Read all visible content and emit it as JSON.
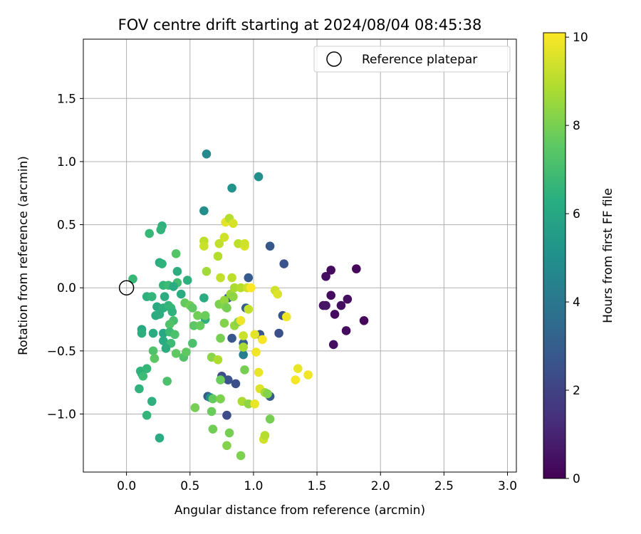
{
  "chart_data": {
    "type": "scatter",
    "title": "FOV centre drift starting at 2024/08/04 08:45:38",
    "xlabel": "Angular distance from reference (arcmin)",
    "ylabel": "Rotation from reference (arcmin)",
    "xlim": [
      -0.34,
      3.07
    ],
    "ylim": [
      -1.46,
      1.97
    ],
    "xticks": [
      0.0,
      0.5,
      1.0,
      1.5,
      2.0,
      2.5,
      3.0
    ],
    "xtick_labels": [
      "0.0",
      "0.5",
      "1.0",
      "1.5",
      "2.0",
      "2.5",
      "3.0"
    ],
    "yticks": [
      -1.0,
      -0.5,
      0.0,
      0.5,
      1.0,
      1.5
    ],
    "ytick_labels": [
      "−1.0",
      "−0.5",
      "0.0",
      "0.5",
      "1.0",
      "1.5"
    ],
    "grid": true,
    "legend": {
      "position": "top-right",
      "entries": [
        {
          "label": "Reference platepar",
          "marker": "open-circle"
        }
      ]
    },
    "reference_point": {
      "x": 0.0,
      "y": 0.0
    },
    "colorbar": {
      "label": "Hours from first FF file",
      "colormap": "viridis",
      "range": [
        0,
        10.1
      ],
      "ticks": [
        0,
        2,
        4,
        6,
        8,
        10
      ],
      "tick_labels": [
        "0",
        "2",
        "4",
        "6",
        "8",
        "10"
      ]
    },
    "points": [
      {
        "x": 1.57,
        "y": 0.09,
        "t": 0.4
      },
      {
        "x": 1.61,
        "y": 0.14,
        "t": 0.3
      },
      {
        "x": 1.81,
        "y": 0.15,
        "t": 0.2
      },
      {
        "x": 1.61,
        "y": -0.06,
        "t": 0.3
      },
      {
        "x": 1.74,
        "y": -0.09,
        "t": 0.4
      },
      {
        "x": 1.55,
        "y": -0.14,
        "t": 0.5
      },
      {
        "x": 1.57,
        "y": -0.14,
        "t": 0.6
      },
      {
        "x": 1.69,
        "y": -0.14,
        "t": 0.4
      },
      {
        "x": 1.64,
        "y": -0.21,
        "t": 0.3
      },
      {
        "x": 1.87,
        "y": -0.26,
        "t": 0.2
      },
      {
        "x": 1.73,
        "y": -0.34,
        "t": 0.3
      },
      {
        "x": 1.63,
        "y": -0.45,
        "t": 0.4
      },
      {
        "x": 1.24,
        "y": 0.19,
        "t": 2.6
      },
      {
        "x": 1.13,
        "y": 0.33,
        "t": 2.8
      },
      {
        "x": 0.96,
        "y": 0.08,
        "t": 2.9
      },
      {
        "x": 1.23,
        "y": -0.22,
        "t": 2.6
      },
      {
        "x": 0.94,
        "y": -0.16,
        "t": 3.0
      },
      {
        "x": 1.05,
        "y": -0.37,
        "t": 2.7
      },
      {
        "x": 1.2,
        "y": -0.36,
        "t": 2.5
      },
      {
        "x": 0.83,
        "y": -0.4,
        "t": 2.8
      },
      {
        "x": 0.92,
        "y": -0.44,
        "t": 3.1
      },
      {
        "x": 0.75,
        "y": -0.7,
        "t": 2.4
      },
      {
        "x": 0.8,
        "y": -0.73,
        "t": 2.6
      },
      {
        "x": 0.86,
        "y": -0.76,
        "t": 2.5
      },
      {
        "x": 0.64,
        "y": -0.86,
        "t": 3.0
      },
      {
        "x": 0.79,
        "y": -1.01,
        "t": 2.4
      },
      {
        "x": 1.13,
        "y": -0.86,
        "t": 2.9
      },
      {
        "x": 0.8,
        "y": -0.08,
        "t": 3.2
      },
      {
        "x": 0.63,
        "y": 1.06,
        "t": 4.8
      },
      {
        "x": 1.04,
        "y": 0.88,
        "t": 5.0
      },
      {
        "x": 0.83,
        "y": 0.79,
        "t": 5.2
      },
      {
        "x": 0.61,
        "y": 0.61,
        "t": 5.0
      },
      {
        "x": 0.92,
        "y": -0.53,
        "t": 4.3
      },
      {
        "x": 0.66,
        "y": -0.87,
        "t": 5.1
      },
      {
        "x": 0.39,
        "y": 0.27,
        "t": 7.4
      },
      {
        "x": 0.28,
        "y": 0.49,
        "t": 6.4
      },
      {
        "x": 0.27,
        "y": 0.46,
        "t": 6.6
      },
      {
        "x": 0.18,
        "y": 0.43,
        "t": 6.8
      },
      {
        "x": 0.26,
        "y": 0.2,
        "t": 6.2
      },
      {
        "x": 0.28,
        "y": 0.19,
        "t": 6.5
      },
      {
        "x": 0.4,
        "y": 0.13,
        "t": 6.3
      },
      {
        "x": 0.05,
        "y": 0.07,
        "t": 6.8
      },
      {
        "x": 0.29,
        "y": 0.02,
        "t": 6.7
      },
      {
        "x": 0.33,
        "y": 0.02,
        "t": 6.9
      },
      {
        "x": 0.4,
        "y": 0.04,
        "t": 7.0
      },
      {
        "x": 0.48,
        "y": 0.06,
        "t": 6.4
      },
      {
        "x": 0.37,
        "y": 0.01,
        "t": 6.2
      },
      {
        "x": 0.43,
        "y": -0.05,
        "t": 6.2
      },
      {
        "x": 0.16,
        "y": -0.07,
        "t": 6.4
      },
      {
        "x": 0.2,
        "y": -0.07,
        "t": 6.6
      },
      {
        "x": 0.3,
        "y": -0.07,
        "t": 6.3
      },
      {
        "x": 0.24,
        "y": -0.15,
        "t": 6.1
      },
      {
        "x": 0.29,
        "y": -0.16,
        "t": 6.4
      },
      {
        "x": 0.33,
        "y": -0.14,
        "t": 6.6
      },
      {
        "x": 0.35,
        "y": -0.16,
        "t": 6.7
      },
      {
        "x": 0.36,
        "y": -0.19,
        "t": 6.5
      },
      {
        "x": 0.23,
        "y": -0.22,
        "t": 6.2
      },
      {
        "x": 0.26,
        "y": -0.21,
        "t": 6.3
      },
      {
        "x": 0.37,
        "y": -0.26,
        "t": 7.1
      },
      {
        "x": 0.34,
        "y": -0.29,
        "t": 7.3
      },
      {
        "x": 0.12,
        "y": -0.33,
        "t": 6.1
      },
      {
        "x": 0.12,
        "y": -0.36,
        "t": 6.4
      },
      {
        "x": 0.21,
        "y": -0.36,
        "t": 6.2
      },
      {
        "x": 0.29,
        "y": -0.36,
        "t": 6.0
      },
      {
        "x": 0.34,
        "y": -0.35,
        "t": 6.9
      },
      {
        "x": 0.38,
        "y": -0.37,
        "t": 7.2
      },
      {
        "x": 0.29,
        "y": -0.42,
        "t": 6.2
      },
      {
        "x": 0.35,
        "y": -0.44,
        "t": 6.9
      },
      {
        "x": 0.31,
        "y": -0.48,
        "t": 6.3
      },
      {
        "x": 0.21,
        "y": -0.5,
        "t": 7.3
      },
      {
        "x": 0.22,
        "y": -0.56,
        "t": 7.5
      },
      {
        "x": 0.39,
        "y": -0.52,
        "t": 7.6
      },
      {
        "x": 0.45,
        "y": -0.55,
        "t": 7.3
      },
      {
        "x": 0.47,
        "y": -0.51,
        "t": 7.6
      },
      {
        "x": 0.52,
        "y": -0.44,
        "t": 7.2
      },
      {
        "x": 0.11,
        "y": -0.66,
        "t": 6.6
      },
      {
        "x": 0.12,
        "y": -0.68,
        "t": 6.4
      },
      {
        "x": 0.16,
        "y": -0.64,
        "t": 6.7
      },
      {
        "x": 0.13,
        "y": -0.7,
        "t": 6.9
      },
      {
        "x": 0.1,
        "y": -0.8,
        "t": 6.5
      },
      {
        "x": 0.32,
        "y": -0.74,
        "t": 7.2
      },
      {
        "x": 0.2,
        "y": -0.9,
        "t": 6.4
      },
      {
        "x": 0.16,
        "y": -1.01,
        "t": 6.6
      },
      {
        "x": 0.26,
        "y": -1.19,
        "t": 6.2
      },
      {
        "x": 0.61,
        "y": -0.08,
        "t": 6.2
      },
      {
        "x": 0.62,
        "y": -0.25,
        "t": 6.4
      },
      {
        "x": 0.46,
        "y": -0.12,
        "t": 7.7
      },
      {
        "x": 0.5,
        "y": -0.14,
        "t": 7.9
      },
      {
        "x": 0.52,
        "y": -0.16,
        "t": 7.6
      },
      {
        "x": 0.56,
        "y": -0.22,
        "t": 7.9
      },
      {
        "x": 0.62,
        "y": -0.22,
        "t": 7.8
      },
      {
        "x": 0.53,
        "y": -0.3,
        "t": 7.5
      },
      {
        "x": 0.58,
        "y": -0.3,
        "t": 7.7
      },
      {
        "x": 0.54,
        "y": -0.95,
        "t": 8.0
      },
      {
        "x": 0.67,
        "y": -0.98,
        "t": 7.8
      },
      {
        "x": 0.68,
        "y": -0.88,
        "t": 7.7
      },
      {
        "x": 0.68,
        "y": -1.12,
        "t": 7.9
      },
      {
        "x": 0.74,
        "y": -0.88,
        "t": 8.1
      },
      {
        "x": 0.74,
        "y": -0.73,
        "t": 7.8
      },
      {
        "x": 0.81,
        "y": -1.15,
        "t": 8.0
      },
      {
        "x": 0.79,
        "y": -1.25,
        "t": 8.2
      },
      {
        "x": 0.9,
        "y": -1.33,
        "t": 8.1
      },
      {
        "x": 0.67,
        "y": -0.55,
        "t": 8.3
      },
      {
        "x": 0.72,
        "y": -0.57,
        "t": 8.9
      },
      {
        "x": 0.74,
        "y": -0.4,
        "t": 8.0
      },
      {
        "x": 0.73,
        "y": -0.13,
        "t": 8.1
      },
      {
        "x": 0.77,
        "y": -0.1,
        "t": 8.5
      },
      {
        "x": 0.78,
        "y": -0.15,
        "t": 8.3
      },
      {
        "x": 0.79,
        "y": -0.16,
        "t": 8.0
      },
      {
        "x": 0.82,
        "y": -0.05,
        "t": 8.6
      },
      {
        "x": 0.84,
        "y": -0.07,
        "t": 8.4
      },
      {
        "x": 0.85,
        "y": 0.0,
        "t": 8.8
      },
      {
        "x": 0.9,
        "y": 0.0,
        "t": 9.0
      },
      {
        "x": 0.77,
        "y": -0.28,
        "t": 8.2
      },
      {
        "x": 0.85,
        "y": -0.3,
        "t": 8.5
      },
      {
        "x": 0.88,
        "y": -0.27,
        "t": 8.3
      },
      {
        "x": 0.92,
        "y": -0.38,
        "t": 9.3
      },
      {
        "x": 0.92,
        "y": -0.47,
        "t": 8.8
      },
      {
        "x": 0.96,
        "y": -0.17,
        "t": 9.2
      },
      {
        "x": 0.93,
        "y": -0.65,
        "t": 8.0
      },
      {
        "x": 0.91,
        "y": -0.9,
        "t": 8.8
      },
      {
        "x": 0.96,
        "y": -0.92,
        "t": 8.4
      },
      {
        "x": 1.01,
        "y": -0.92,
        "t": 9.8
      },
      {
        "x": 1.05,
        "y": -0.8,
        "t": 9.6
      },
      {
        "x": 1.09,
        "y": -0.83,
        "t": 8.7
      },
      {
        "x": 1.11,
        "y": -0.84,
        "t": 8.2
      },
      {
        "x": 1.13,
        "y": -1.04,
        "t": 8.0
      },
      {
        "x": 1.08,
        "y": -1.2,
        "t": 9.4
      },
      {
        "x": 1.09,
        "y": -1.17,
        "t": 9.0
      },
      {
        "x": 0.61,
        "y": 0.37,
        "t": 9.1
      },
      {
        "x": 0.61,
        "y": 0.33,
        "t": 9.3
      },
      {
        "x": 0.63,
        "y": 0.13,
        "t": 8.7
      },
      {
        "x": 0.72,
        "y": 0.25,
        "t": 9.0
      },
      {
        "x": 0.73,
        "y": 0.35,
        "t": 9.2
      },
      {
        "x": 0.77,
        "y": 0.4,
        "t": 9.4
      },
      {
        "x": 0.78,
        "y": 0.52,
        "t": 9.7
      },
      {
        "x": 0.81,
        "y": 0.55,
        "t": 9.0
      },
      {
        "x": 0.84,
        "y": 0.51,
        "t": 9.5
      },
      {
        "x": 0.88,
        "y": 0.35,
        "t": 9.1
      },
      {
        "x": 0.93,
        "y": 0.33,
        "t": 9.6
      },
      {
        "x": 0.93,
        "y": 0.35,
        "t": 9.4
      },
      {
        "x": 0.74,
        "y": 0.08,
        "t": 9.2
      },
      {
        "x": 0.83,
        "y": 0.08,
        "t": 9.1
      },
      {
        "x": 0.95,
        "y": 0.0,
        "t": 9.4
      },
      {
        "x": 0.98,
        "y": 0.0,
        "t": 10.1
      },
      {
        "x": 0.9,
        "y": -0.26,
        "t": 9.9
      },
      {
        "x": 1.01,
        "y": -0.37,
        "t": 9.7
      },
      {
        "x": 1.07,
        "y": -0.41,
        "t": 10.0
      },
      {
        "x": 1.02,
        "y": -0.51,
        "t": 9.9
      },
      {
        "x": 1.04,
        "y": -0.67,
        "t": 9.8
      },
      {
        "x": 1.17,
        "y": -0.02,
        "t": 9.4
      },
      {
        "x": 1.19,
        "y": -0.05,
        "t": 9.6
      },
      {
        "x": 1.26,
        "y": -0.23,
        "t": 9.9
      },
      {
        "x": 1.33,
        "y": -0.73,
        "t": 10.0
      },
      {
        "x": 1.35,
        "y": -0.64,
        "t": 9.8
      },
      {
        "x": 1.43,
        "y": -0.69,
        "t": 9.9
      }
    ]
  }
}
